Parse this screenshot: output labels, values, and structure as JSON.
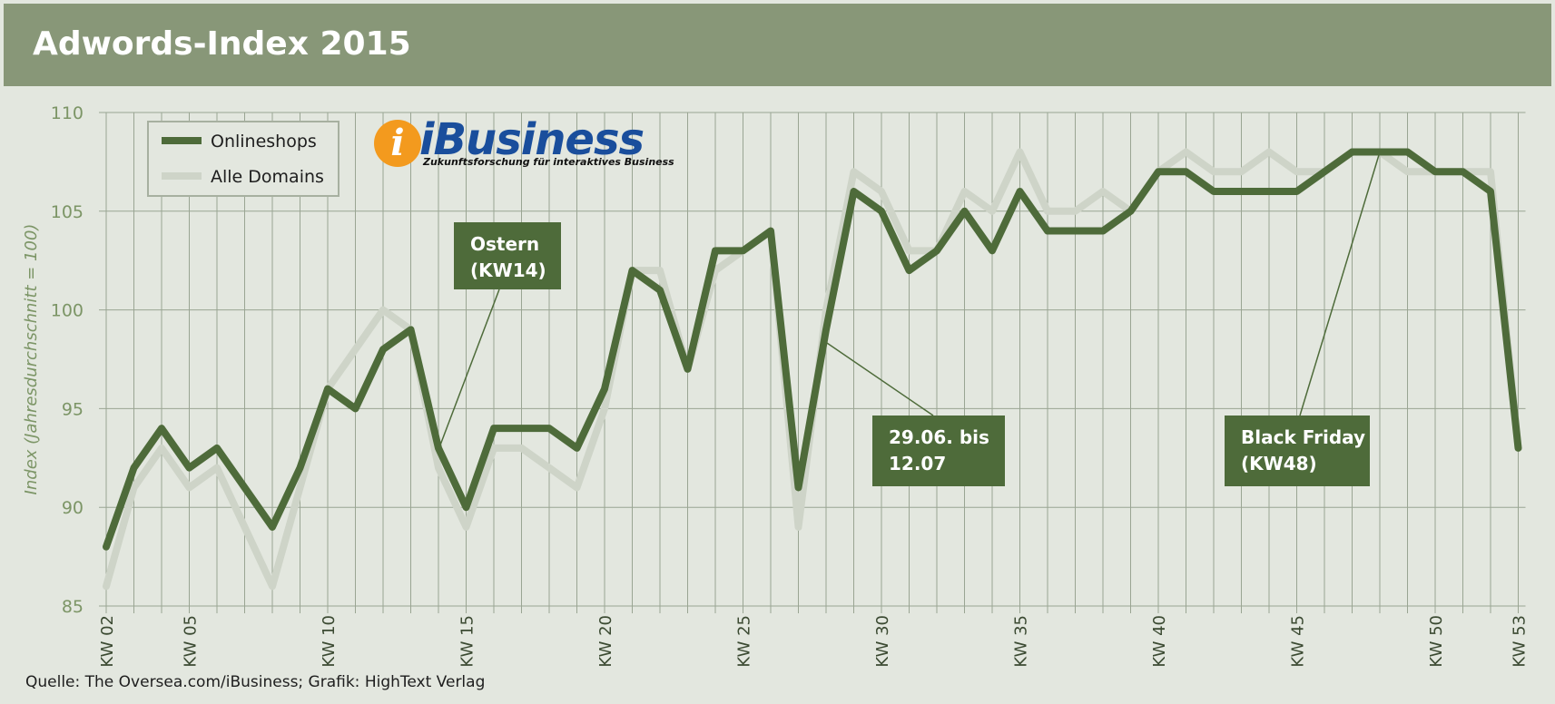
{
  "header": {
    "title": "Adwords-Index 2015"
  },
  "source": "Quelle: The Oversea.com/iBusiness; Grafik: HighText Verlag",
  "logo": {
    "word": "iBusiness",
    "letter": "i",
    "tagline": "Zukunftsforschung für interaktives Business"
  },
  "colors": {
    "onlineshops": "#4e6b3a",
    "alle_domains": "#ced4c8",
    "grid": "#9aa593",
    "axis_text": "#7c9566",
    "callout_bg": "#4e6b3a",
    "callout_text": "#ffffff",
    "header_bg": "#889778",
    "background": "#e3e7df"
  },
  "chart_data": {
    "type": "line",
    "ylabel": "Index (Jahresdurchschnitt = 100)",
    "ylim": [
      85,
      110
    ],
    "y_ticks": [
      85,
      90,
      95,
      100,
      105,
      110
    ],
    "x_start_week": 2,
    "x_end_week": 53,
    "x_tick_labels": [
      {
        "week": 2,
        "label": "KW 02"
      },
      {
        "week": 5,
        "label": "KW 05"
      },
      {
        "week": 10,
        "label": "KW 10"
      },
      {
        "week": 15,
        "label": "KW 15"
      },
      {
        "week": 20,
        "label": "KW 20"
      },
      {
        "week": 25,
        "label": "KW 25"
      },
      {
        "week": 30,
        "label": "KW 30"
      },
      {
        "week": 35,
        "label": "KW 35"
      },
      {
        "week": 40,
        "label": "KW 40"
      },
      {
        "week": 45,
        "label": "KW 45"
      },
      {
        "week": 50,
        "label": "KW 50"
      },
      {
        "week": 53,
        "label": "KW 53"
      }
    ],
    "grid": true,
    "legend_position": "top-left",
    "series": [
      {
        "name": "Onlineshops",
        "color": "#4e6b3a",
        "values": [
          88,
          92,
          94,
          92,
          93,
          91,
          89,
          92,
          96,
          95,
          98,
          99,
          93,
          90,
          94,
          94,
          94,
          93,
          96,
          102,
          101,
          97,
          103,
          103,
          104,
          91,
          99,
          106,
          105,
          102,
          103,
          105,
          103,
          106,
          104,
          104,
          104,
          105,
          107,
          107,
          106,
          106,
          106,
          106,
          107,
          108,
          108,
          108,
          107,
          107,
          106,
          93
        ]
      },
      {
        "name": "Alle Domains",
        "color": "#ced4c8",
        "values": [
          86,
          91,
          93,
          91,
          92,
          89,
          86,
          91,
          96,
          98,
          100,
          99,
          92,
          89,
          93,
          93,
          92,
          91,
          95,
          102,
          102,
          97,
          102,
          103,
          104,
          89,
          100,
          107,
          106,
          103,
          103,
          106,
          105,
          108,
          105,
          105,
          106,
          105,
          107,
          108,
          107,
          107,
          108,
          107,
          107,
          108,
          108,
          107,
          107,
          107,
          107,
          93
        ]
      }
    ],
    "annotations": [
      {
        "lines": [
          "Ostern",
          "(KW14)"
        ],
        "week": 14
      },
      {
        "lines": [
          "29.06. bis",
          "12.07"
        ],
        "week": 28
      },
      {
        "lines": [
          "Black Friday",
          "(KW48)"
        ],
        "week": 48
      }
    ]
  }
}
